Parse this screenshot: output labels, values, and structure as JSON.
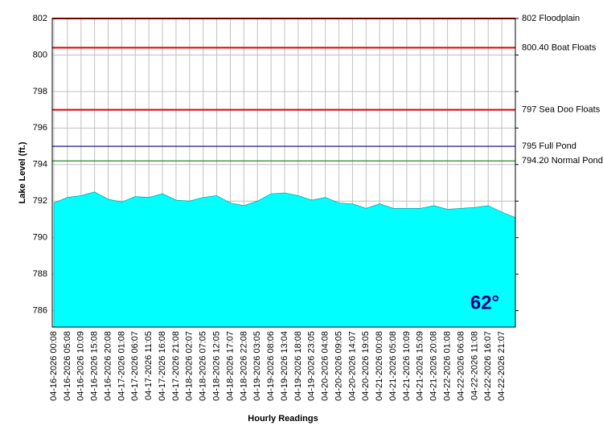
{
  "chart_data": {
    "type": "area",
    "ylabel": "Lake Level (ft.)",
    "xlabel": "Hourly Readings",
    "annotation": "62°",
    "categories": [
      "04-16-2026 00:08",
      "04-16-2026 05:08",
      "04-16-2026 10:09",
      "04-16-2026 15:08",
      "04-16-2026 20:08",
      "04-17-2026 01:08",
      "04-17-2026 06:07",
      "04-17-2026 11:05",
      "04-17-2026 16:08",
      "04-17-2026 21:08",
      "04-18-2026 02:07",
      "04-18-2026 07:05",
      "04-18-2026 12:05",
      "04-18-2026 17:07",
      "04-18-2026 22:08",
      "04-19-2026 03:05",
      "04-19-2026 08:06",
      "04-19-2026 13:04",
      "04-19-2026 18:08",
      "04-19-2026 23:05",
      "04-20-2026 04:08",
      "04-20-2026 09:05",
      "04-20-2026 14:07",
      "04-20-2026 19:05",
      "04-21-2026 00:08",
      "04-21-2026 05:08",
      "04-21-2026 10:09",
      "04-21-2026 15:09",
      "04-21-2026 20:08",
      "04-22-2026 01:08",
      "04-22-2026 06:08",
      "04-22-2026 11:08",
      "04-22-2026 16:07",
      "04-22-2026 21:07",
      null
    ],
    "values": [
      791.9,
      792.2,
      792.3,
      792.5,
      792.1,
      791.95,
      792.25,
      792.2,
      792.4,
      792.05,
      792.0,
      792.2,
      792.3,
      791.9,
      791.75,
      792.0,
      792.4,
      792.45,
      792.3,
      792.05,
      792.2,
      791.9,
      791.85,
      791.6,
      791.85,
      791.6,
      791.6,
      791.6,
      791.75,
      791.55,
      791.6,
      791.65,
      791.75,
      791.4,
      791.1
    ],
    "color": "#00ffff",
    "ylim": [
      785.1,
      802
    ],
    "yticks": [
      786,
      788,
      790,
      792,
      794,
      796,
      798,
      800,
      802
    ],
    "grid": true,
    "reference_lines": [
      {
        "value": 802,
        "label": "802 Floodplain",
        "color": "#e00000"
      },
      {
        "value": 800.4,
        "label": "800.40 Boat Floats",
        "color": "#e00000"
      },
      {
        "value": 797,
        "label": "797 Sea Doo Floats",
        "color": "#e00000"
      },
      {
        "value": 795,
        "label": "795 Full Pond",
        "color": "#000080"
      },
      {
        "value": 794.2,
        "label": "794.20 Normal Pond",
        "color": "#228b22"
      }
    ]
  }
}
